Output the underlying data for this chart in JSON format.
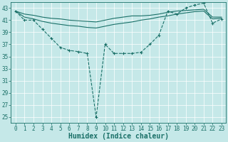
{
  "xlabel": "Humidex (Indice chaleur)",
  "ylabel": "",
  "bg_color": "#c5e8e8",
  "line_color": "#1a7068",
  "grid_color": "#ffffff",
  "xlim": [
    -0.5,
    23.5
  ],
  "ylim": [
    24,
    44
  ],
  "yticks": [
    25,
    27,
    29,
    31,
    33,
    35,
    37,
    39,
    41,
    43
  ],
  "xticks": [
    0,
    1,
    2,
    3,
    4,
    5,
    6,
    7,
    8,
    9,
    10,
    11,
    12,
    13,
    14,
    15,
    16,
    17,
    18,
    19,
    20,
    21,
    22,
    23
  ],
  "line1_x": [
    0,
    1,
    2,
    3,
    4,
    5,
    6,
    7,
    8,
    9,
    10,
    11,
    12,
    13,
    14,
    15,
    16,
    17,
    18,
    19,
    20,
    21,
    22,
    23
  ],
  "line1_y": [
    42.5,
    41.0,
    41.0,
    39.5,
    38.0,
    36.5,
    36.0,
    35.8,
    35.5,
    25.0,
    37.0,
    35.5,
    35.5,
    35.5,
    35.7,
    37.0,
    38.5,
    42.5,
    42.0,
    43.0,
    43.5,
    43.8,
    40.5,
    41.2
  ],
  "line2_x": [
    0,
    1,
    2,
    3,
    4,
    5,
    6,
    7,
    8,
    9,
    10,
    11,
    12,
    13,
    14,
    15,
    16,
    17,
    18,
    19,
    20,
    21,
    22,
    23
  ],
  "line2_y": [
    42.5,
    41.5,
    41.2,
    40.8,
    40.5,
    40.3,
    40.1,
    40.0,
    39.8,
    39.7,
    40.0,
    40.3,
    40.5,
    40.7,
    41.0,
    41.2,
    41.5,
    41.7,
    42.0,
    42.2,
    42.4,
    42.5,
    41.2,
    41.3
  ],
  "line3_x": [
    0,
    1,
    2,
    3,
    4,
    5,
    6,
    7,
    8,
    9,
    10,
    11,
    12,
    13,
    14,
    15,
    16,
    17,
    18,
    19,
    20,
    21,
    22,
    23
  ],
  "line3_y": [
    42.5,
    42.0,
    41.8,
    41.5,
    41.3,
    41.2,
    41.0,
    40.9,
    40.8,
    40.7,
    41.0,
    41.3,
    41.5,
    41.7,
    41.7,
    41.8,
    42.0,
    42.3,
    42.5,
    42.6,
    42.7,
    42.8,
    41.5,
    41.5
  ],
  "title_fontsize": 7,
  "axis_fontsize": 7,
  "tick_fontsize": 5.5
}
